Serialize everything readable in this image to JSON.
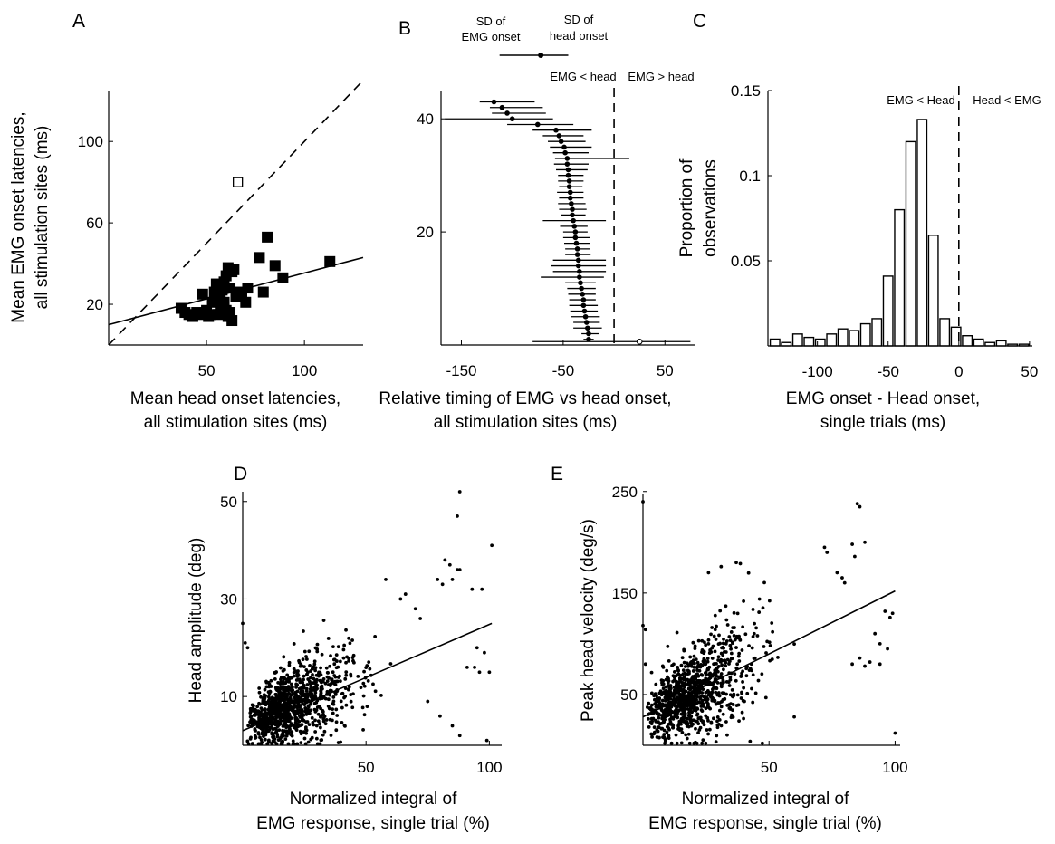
{
  "chart_data": [
    {
      "panel": "A",
      "type": "scatter",
      "xlabel": [
        "Mean head onset latencies,",
        "all stimulation sites (ms)"
      ],
      "ylabel": [
        "Mean EMG onset latencies,",
        "all stimulation sites (ms)"
      ],
      "xlim": [
        0,
        130
      ],
      "ylim": [
        0,
        125
      ],
      "xticks": [
        50,
        100
      ],
      "yticks": [
        20,
        60,
        100
      ],
      "series": [
        {
          "marker": "filled-square",
          "points": [
            [
              37,
              18
            ],
            [
              39,
              16
            ],
            [
              41,
              15
            ],
            [
              43,
              14
            ],
            [
              45,
              16
            ],
            [
              47,
              15
            ],
            [
              48,
              25
            ],
            [
              50,
              17
            ],
            [
              51,
              14
            ],
            [
              52,
              15
            ],
            [
              53,
              21
            ],
            [
              54,
              26
            ],
            [
              55,
              30
            ],
            [
              55,
              22
            ],
            [
              56,
              15
            ],
            [
              57,
              24
            ],
            [
              57,
              18
            ],
            [
              58,
              27
            ],
            [
              59,
              31
            ],
            [
              59,
              21
            ],
            [
              60,
              34
            ],
            [
              60,
              17
            ],
            [
              61,
              38
            ],
            [
              61,
              14
            ],
            [
              62,
              28
            ],
            [
              62,
              16
            ],
            [
              63,
              36
            ],
            [
              63,
              12
            ],
            [
              64,
              37
            ],
            [
              65,
              24
            ],
            [
              67,
              26
            ],
            [
              68,
              24
            ],
            [
              70,
              21
            ],
            [
              71,
              28
            ],
            [
              77,
              43
            ],
            [
              79,
              26
            ],
            [
              81,
              53
            ],
            [
              85,
              39
            ],
            [
              89,
              33
            ],
            [
              113,
              41
            ]
          ]
        },
        {
          "marker": "open-square",
          "points": [
            [
              66,
              80
            ]
          ]
        }
      ],
      "lines": [
        {
          "style": "dashed",
          "x": [
            0,
            130
          ],
          "y": [
            0,
            130
          ]
        },
        {
          "style": "solid",
          "x": [
            0,
            130
          ],
          "y": [
            10,
            43
          ]
        }
      ]
    },
    {
      "panel": "B",
      "type": "scatter",
      "xlabel": [
        "Relative timing of EMG vs head onset,",
        "all stimulation sites (ms)"
      ],
      "xlim": [
        -170,
        80
      ],
      "ylim": [
        0,
        45
      ],
      "xticks": [
        -150,
        -50,
        50
      ],
      "xtick_labels": [
        "-150",
        "-50",
        "50"
      ],
      "yticks": [
        20,
        40
      ],
      "region_labels": [
        "EMG < head",
        "EMG > head"
      ],
      "legend_labels": [
        "SD of EMG onset",
        "SD of head onset"
      ],
      "points": [
        {
          "y": 43,
          "x": -118,
          "lo": -132,
          "hi": -78
        },
        {
          "y": 42,
          "x": -110,
          "lo": -122,
          "hi": -70
        },
        {
          "y": 41,
          "x": -105,
          "lo": -120,
          "hi": -67
        },
        {
          "y": 40,
          "x": -100,
          "lo": -166,
          "hi": -60
        },
        {
          "y": 39,
          "x": -75,
          "lo": -105,
          "hi": -40
        },
        {
          "y": 38,
          "x": -57,
          "lo": -80,
          "hi": -22
        },
        {
          "y": 37,
          "x": -54,
          "lo": -70,
          "hi": -30
        },
        {
          "y": 36,
          "x": -52,
          "lo": -65,
          "hi": -28
        },
        {
          "y": 35,
          "x": -49,
          "lo": -63,
          "hi": -22
        },
        {
          "y": 34,
          "x": -48,
          "lo": -60,
          "hi": -25
        },
        {
          "y": 33,
          "x": -46,
          "lo": -58,
          "hi": 15
        },
        {
          "y": 32,
          "x": -46,
          "lo": -59,
          "hi": -25
        },
        {
          "y": 31,
          "x": -45,
          "lo": -57,
          "hi": -26
        },
        {
          "y": 30,
          "x": -45,
          "lo": -55,
          "hi": -30
        },
        {
          "y": 29,
          "x": -44,
          "lo": -55,
          "hi": -30
        },
        {
          "y": 28,
          "x": -44,
          "lo": -54,
          "hi": -31
        },
        {
          "y": 27,
          "x": -43,
          "lo": -56,
          "hi": -30
        },
        {
          "y": 26,
          "x": -43,
          "lo": -54,
          "hi": -30
        },
        {
          "y": 25,
          "x": -42,
          "lo": -55,
          "hi": -28
        },
        {
          "y": 24,
          "x": -41,
          "lo": -54,
          "hi": -27
        },
        {
          "y": 23,
          "x": -41,
          "lo": -52,
          "hi": -28
        },
        {
          "y": 22,
          "x": -40,
          "lo": -70,
          "hi": -8
        },
        {
          "y": 21,
          "x": -39,
          "lo": -53,
          "hi": -26
        },
        {
          "y": 20,
          "x": -38,
          "lo": -50,
          "hi": -26
        },
        {
          "y": 19,
          "x": -38,
          "lo": -50,
          "hi": -24
        },
        {
          "y": 18,
          "x": -37,
          "lo": -49,
          "hi": -24
        },
        {
          "y": 17,
          "x": -36,
          "lo": -48,
          "hi": -24
        },
        {
          "y": 16,
          "x": -36,
          "lo": -48,
          "hi": -23
        },
        {
          "y": 15,
          "x": -35,
          "lo": -60,
          "hi": -8
        },
        {
          "y": 14,
          "x": -35,
          "lo": -62,
          "hi": -8
        },
        {
          "y": 13,
          "x": -34,
          "lo": -60,
          "hi": -8
        },
        {
          "y": 12,
          "x": -34,
          "lo": -72,
          "hi": -10
        },
        {
          "y": 11,
          "x": -33,
          "lo": -48,
          "hi": -18
        },
        {
          "y": 10,
          "x": -32,
          "lo": -46,
          "hi": -18
        },
        {
          "y": 9,
          "x": -31,
          "lo": -45,
          "hi": -18
        },
        {
          "y": 8,
          "x": -30,
          "lo": -44,
          "hi": -18
        },
        {
          "y": 7,
          "x": -30,
          "lo": -44,
          "hi": -16
        },
        {
          "y": 6,
          "x": -29,
          "lo": -43,
          "hi": -16
        },
        {
          "y": 5,
          "x": -28,
          "lo": -42,
          "hi": -14
        },
        {
          "y": 4,
          "x": -27,
          "lo": -40,
          "hi": -14
        },
        {
          "y": 3,
          "x": -26,
          "lo": -40,
          "hi": -12
        },
        {
          "y": 2,
          "x": -25,
          "lo": -32,
          "hi": -15
        },
        {
          "y": 1,
          "x": -25,
          "lo": -30,
          "hi": -20
        }
      ],
      "outlier": {
        "y": 0.6,
        "x": 25,
        "lo": -80,
        "hi": 75
      },
      "legend_example": {
        "x": -72,
        "lo": -100,
        "hi": -45
      }
    },
    {
      "panel": "C",
      "type": "bar",
      "xlabel": [
        "EMG onset - Head onset,",
        "single trials (ms)"
      ],
      "ylabel": [
        "Proportion of",
        "observations"
      ],
      "xlim": [
        -135,
        52
      ],
      "ylim": [
        0,
        0.15
      ],
      "xticks": [
        -100,
        -50,
        0,
        50
      ],
      "xtick_labels": [
        "-100",
        "-50",
        "0",
        "50"
      ],
      "yticks": [
        0.05,
        0.1,
        0.15
      ],
      "ytick_labels": [
        "0.05",
        "0.1",
        "0.15"
      ],
      "region_labels": [
        "EMG < Head",
        "Head < EMG"
      ],
      "bin_width": 8,
      "bin_centers": [
        -130,
        -122,
        -114,
        -106,
        -98,
        -90,
        -82,
        -74,
        -66,
        -58,
        -50,
        -42,
        -34,
        -26,
        -18,
        -10,
        -2,
        6,
        14,
        22,
        30,
        38,
        46
      ],
      "values": [
        0.004,
        0.002,
        0.007,
        0.005,
        0.004,
        0.007,
        0.01,
        0.009,
        0.013,
        0.016,
        0.041,
        0.08,
        0.12,
        0.133,
        0.065,
        0.016,
        0.011,
        0.006,
        0.004,
        0.002,
        0.003,
        0.001,
        0.001
      ]
    },
    {
      "panel": "D",
      "type": "scatter",
      "xlabel": [
        "Normalized integral of",
        "EMG response, single trial (%)"
      ],
      "ylabel": [
        "Head amplitude (deg)"
      ],
      "xlim": [
        0,
        105
      ],
      "ylim": [
        0,
        52
      ],
      "xticks": [
        50,
        100
      ],
      "yticks": [
        10,
        30,
        50
      ],
      "fit_line": {
        "x": [
          0,
          101
        ],
        "y": [
          3,
          25
        ]
      },
      "highlight_points": [
        [
          88,
          52
        ],
        [
          87,
          47
        ],
        [
          101,
          41
        ],
        [
          82,
          38
        ],
        [
          84,
          37
        ],
        [
          87,
          36
        ],
        [
          88,
          36
        ],
        [
          93,
          32
        ],
        [
          97,
          32
        ],
        [
          79,
          34
        ],
        [
          81,
          33
        ],
        [
          85,
          34
        ],
        [
          95,
          20
        ],
        [
          98,
          19
        ],
        [
          91,
          16
        ],
        [
          94,
          16
        ],
        [
          96,
          15
        ],
        [
          100,
          15
        ],
        [
          99,
          1
        ],
        [
          85,
          4
        ],
        [
          88,
          2
        ],
        [
          75,
          9
        ],
        [
          80,
          6
        ],
        [
          0,
          25
        ],
        [
          1,
          21
        ],
        [
          2,
          20
        ],
        [
          58,
          34
        ],
        [
          64,
          30
        ],
        [
          66,
          31
        ],
        [
          70,
          28
        ],
        [
          72,
          26
        ]
      ]
    },
    {
      "panel": "E",
      "type": "scatter",
      "xlabel": [
        "Normalized integral of",
        "EMG response, single trial (%)"
      ],
      "ylabel": [
        "Peak head velocity (deg/s)"
      ],
      "xlim": [
        0,
        102
      ],
      "ylim": [
        0,
        248
      ],
      "xticks": [
        50,
        100
      ],
      "yticks": [
        50,
        150,
        250
      ],
      "fit_line": {
        "x": [
          0,
          100
        ],
        "y": [
          28,
          152
        ]
      },
      "highlight_points": [
        [
          85,
          238
        ],
        [
          86,
          235
        ],
        [
          0,
          240
        ],
        [
          72,
          195
        ],
        [
          73,
          190
        ],
        [
          83,
          198
        ],
        [
          84,
          186
        ],
        [
          88,
          200
        ],
        [
          77,
          170
        ],
        [
          79,
          165
        ],
        [
          80,
          160
        ],
        [
          96,
          132
        ],
        [
          98,
          126
        ],
        [
          99,
          130
        ],
        [
          92,
          110
        ],
        [
          94,
          100
        ],
        [
          97,
          95
        ],
        [
          86,
          86
        ],
        [
          88,
          78
        ],
        [
          90,
          82
        ],
        [
          94,
          80
        ],
        [
          83,
          80
        ],
        [
          100,
          12
        ],
        [
          0,
          118
        ],
        [
          1,
          114
        ],
        [
          1,
          80
        ],
        [
          60,
          28
        ],
        [
          26,
          170
        ],
        [
          31,
          176
        ],
        [
          37,
          180
        ]
      ]
    }
  ]
}
